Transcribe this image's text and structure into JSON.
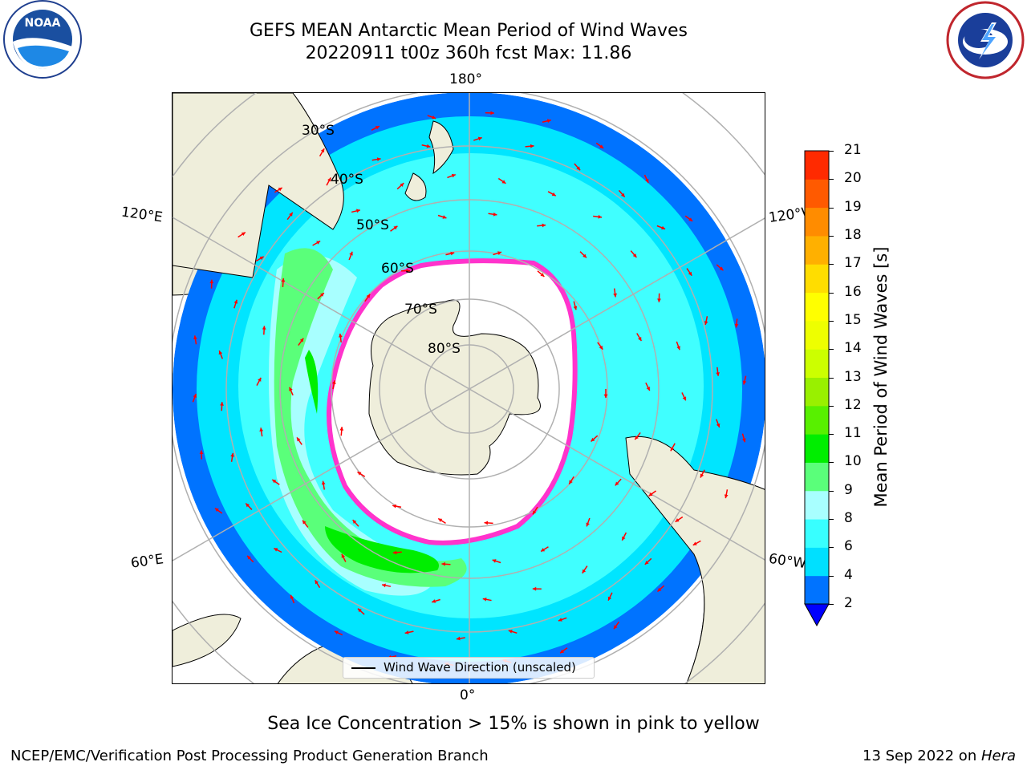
{
  "header": {
    "title_line1": "GEFS MEAN Antarctic Mean Period of Wind Waves",
    "title_line2": "20220911 t00z 360h fcst   Max: 11.86"
  },
  "logos": {
    "left_text": "NOAA",
    "left_ring": "NATIONAL OCEANIC AND ATMOSPHERIC ADMINISTRATION · U.S. DEPARTMENT OF COMMERCE",
    "right_ring": "NATIONAL WEATHER SERVICE"
  },
  "map": {
    "projection": "south-polar-stereographic",
    "longitude_labels": {
      "top": "180°",
      "bottom": "0°",
      "upper_left": "120°E",
      "upper_right": "120°W",
      "lower_left": "60°E",
      "lower_right": "60°W"
    },
    "latitude_labels": [
      "30°S",
      "40°S",
      "50°S",
      "60°S",
      "70°S",
      "80°S"
    ],
    "colors": {
      "land": "#efeedb",
      "ocean_2_4": "#0080ff",
      "ocean_4_6": "#00e5ff",
      "ocean_6_8": "#4dffff",
      "ocean_8_9": "#a0ffff",
      "ocean_9_10": "#5dff7a",
      "ocean_10_11": "#2cf02c",
      "ice": "#ff33cc",
      "arrow": "#ff0000"
    }
  },
  "legend": {
    "label": "Wind Wave Direction (unscaled)"
  },
  "colorbar": {
    "label": "Mean Period of Wind Waves [s]",
    "ticks": [
      "2",
      "4",
      "6",
      "8",
      "9",
      "10",
      "11",
      "12",
      "13",
      "14",
      "15",
      "16",
      "17",
      "18",
      "19",
      "20",
      "21"
    ],
    "colors": [
      "#0073ff",
      "#00e0ff",
      "#38ffff",
      "#a8ffff",
      "#5aff7a",
      "#00ee00",
      "#58f000",
      "#99f000",
      "#ccff00",
      "#eeff00",
      "#ffff00",
      "#ffdd00",
      "#ffb000",
      "#ff8c00",
      "#ff5a00",
      "#ff2a00",
      "#ff0000"
    ],
    "under_color": "#0000ff"
  },
  "caption": "Sea Ice Concentration > 15% is shown in pink to yellow",
  "footer": {
    "left": "NCEP/EMC/Verification Post Processing Product Generation Branch",
    "right_date": "13 Sep 2022 on ",
    "right_host": "Hera"
  }
}
